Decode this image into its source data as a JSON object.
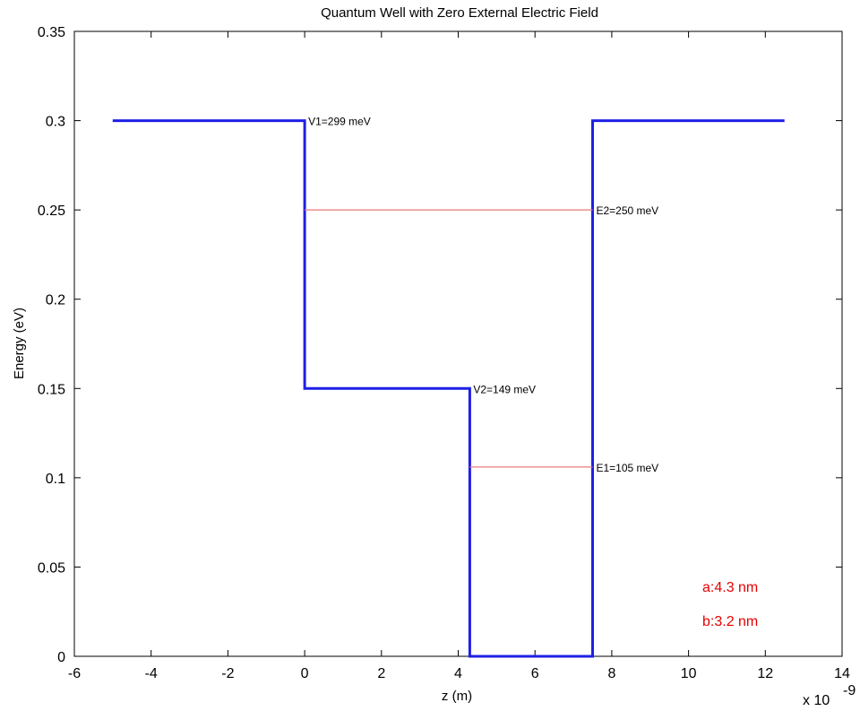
{
  "chart_data": {
    "type": "line",
    "title": "Quantum Well with Zero External Electric Field",
    "xlabel": "z (m)",
    "ylabel": "Energy (eV)",
    "x_multiplier": "x 10",
    "x_multiplier_exponent": "-9",
    "xlim": [
      -6,
      14
    ],
    "ylim": [
      0,
      0.35
    ],
    "xticks": [
      -6,
      -4,
      -2,
      0,
      2,
      4,
      6,
      8,
      10,
      12,
      14
    ],
    "xtick_labels": [
      "-6",
      "-4",
      "-2",
      "0",
      "2",
      "4",
      "6",
      "8",
      "10",
      "12",
      "14"
    ],
    "yticks": [
      0,
      0.05,
      0.1,
      0.15,
      0.2,
      0.25,
      0.3,
      0.35
    ],
    "ytick_labels": [
      "0",
      "0.05",
      "0.1",
      "0.15",
      "0.2",
      "0.25",
      "0.3",
      "0.35"
    ],
    "grid": false,
    "series": [
      {
        "color": "#1f1fe6",
        "x": [
          -5,
          0,
          0,
          4.3,
          4.3,
          7.5,
          7.5,
          12.5
        ],
        "y": [
          0.3,
          0.3,
          0.15,
          0.15,
          0,
          0,
          0.3,
          0.3
        ]
      },
      {
        "color": "#e87a7a",
        "x": [
          0,
          7.5
        ],
        "y": [
          0.25,
          0.25
        ]
      },
      {
        "color": "#e87a7a",
        "x": [
          4.3,
          7.5
        ],
        "y": [
          0.106,
          0.106
        ]
      }
    ],
    "annotations": [
      {
        "text": "V1=299 meV",
        "x": 0,
        "y": 0.3
      },
      {
        "text": "E2=250 meV",
        "x": 7.5,
        "y": 0.25
      },
      {
        "text": "V2=149 meV",
        "x": 4.3,
        "y": 0.15
      },
      {
        "text": "E1=105 meV",
        "x": 7.5,
        "y": 0.106
      }
    ],
    "parameters": [
      {
        "text": "a:4.3 nm",
        "color": "#e60000"
      },
      {
        "text": "b:3.2 nm",
        "color": "#e60000"
      }
    ]
  }
}
